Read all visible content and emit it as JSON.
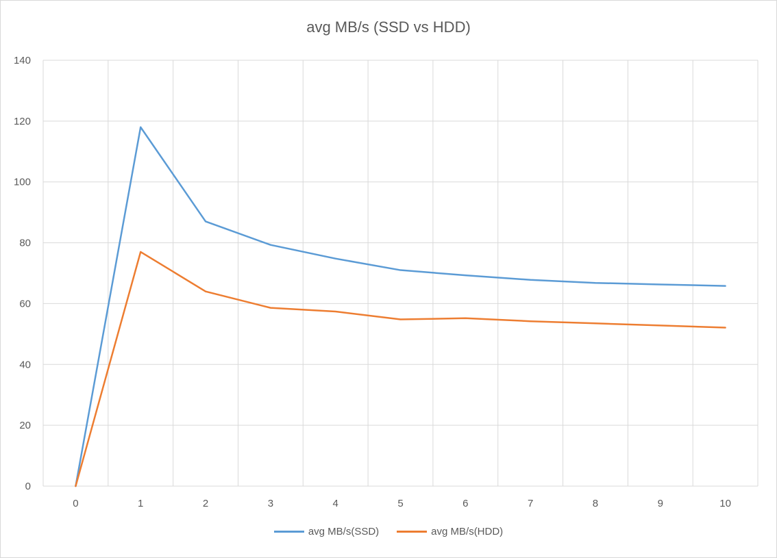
{
  "chart_data": {
    "type": "line",
    "title": "avg MB/s (SSD vs HDD)",
    "xlabel": "",
    "ylabel": "",
    "x": [
      0,
      1,
      2,
      3,
      4,
      5,
      6,
      7,
      8,
      9,
      10
    ],
    "xlim": [
      -0.5,
      10.5
    ],
    "ylim": [
      0,
      140
    ],
    "yticks": [
      0,
      20,
      40,
      60,
      80,
      100,
      120,
      140
    ],
    "grid": true,
    "legend": "bottom",
    "series": [
      {
        "name": "avg MB/s(SSD)",
        "color": "#5b9bd5",
        "values": [
          0,
          118,
          87,
          79.3,
          74.8,
          71,
          69.3,
          67.8,
          66.8,
          66.3,
          65.8
        ]
      },
      {
        "name": "avg MB/s(HDD)",
        "color": "#ed7d31",
        "values": [
          0,
          77,
          64,
          58.6,
          57.4,
          54.8,
          55.2,
          54.2,
          53.5,
          52.8,
          52.1
        ]
      }
    ]
  }
}
